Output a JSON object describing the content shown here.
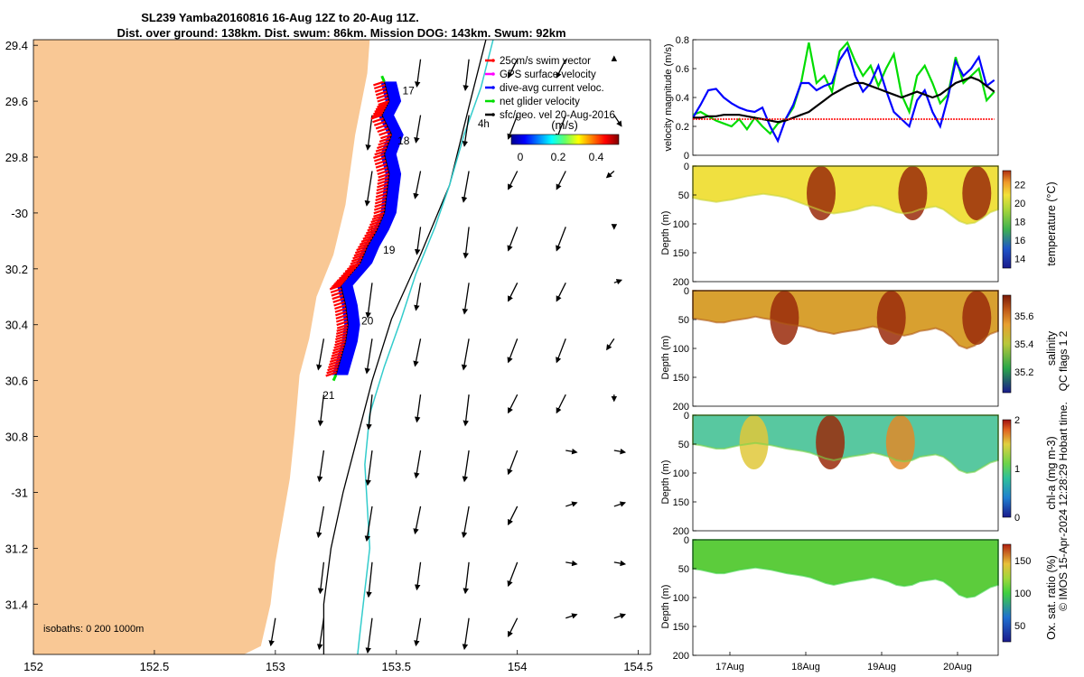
{
  "title": {
    "line1": "SL239 Yamba20160816 16-Aug 12Z to 20-Aug 11Z.",
    "line2": "Dist. over ground: 138km. Dist. swum: 86km. Mission DOG: 143km. Swum: 92km"
  },
  "colors": {
    "land": "#f9c895",
    "swim": "#ff0000",
    "gps": "#ff00ff",
    "dive": "#0000ff",
    "net": "#00dd00",
    "geo": "#000000",
    "iso200": "#000000",
    "iso1000": "#33cccc"
  },
  "chart_data": [
    {
      "type": "map",
      "xlim": [
        152,
        154.55
      ],
      "ylim": [
        -31.58,
        -29.38
      ],
      "x_ticks": [
        152,
        152.5,
        153,
        153.5,
        154,
        154.5
      ],
      "x_tick_labels": [
        "152",
        "152.5",
        "153",
        "153.5",
        "154",
        "154.5"
      ],
      "y_ticks": [
        -29.4,
        -29.6,
        -29.8,
        -30,
        -30.2,
        -30.4,
        -30.6,
        -30.8,
        -31,
        -31.2,
        -31.4
      ],
      "y_tick_labels": [
        "29.4",
        "29.6",
        "29.8",
        "-30",
        "30.2",
        "30.4",
        "30.6",
        "30.8",
        "-31",
        "31.2",
        "31.4"
      ],
      "legend": {
        "items": [
          {
            "label": "25cm/s swim vector",
            "color_key": "swim"
          },
          {
            "label": "GPS surface velocity",
            "color_key": "gps"
          },
          {
            "label": "dive-avg current veloc.",
            "color_key": "dive"
          },
          {
            "label": "net glider velocity",
            "color_key": "net"
          },
          {
            "label": "sfc/geo. vel 20-Aug-2016",
            "color_key": "geo"
          }
        ],
        "placement": "top-right",
        "colorbar_label": "(m/s)",
        "colorbar_ticks": [
          "0",
          "0.2",
          "0.4"
        ],
        "age_label": "4h"
      },
      "day_labels": [
        {
          "label": "17",
          "lon": 153.55,
          "lat": -29.575
        },
        {
          "label": "18",
          "lon": 153.53,
          "lat": -29.755
        },
        {
          "label": "19",
          "lon": 153.47,
          "lat": -30.145
        },
        {
          "label": "20",
          "lon": 153.38,
          "lat": -30.4
        },
        {
          "label": "21",
          "lon": 153.22,
          "lat": -30.665
        }
      ],
      "isobath_label": "isobaths: 0   200  1000m",
      "coast": [
        [
          152.0,
          -29.38
        ],
        [
          153.39,
          -29.38
        ],
        [
          153.38,
          -29.5
        ],
        [
          153.33,
          -29.72
        ],
        [
          153.29,
          -29.97
        ],
        [
          153.24,
          -30.15
        ],
        [
          153.17,
          -30.3
        ],
        [
          153.14,
          -30.45
        ],
        [
          153.1,
          -30.58
        ],
        [
          153.08,
          -30.78
        ],
        [
          153.06,
          -30.95
        ],
        [
          153.03,
          -31.1
        ],
        [
          153.0,
          -31.25
        ],
        [
          152.98,
          -31.4
        ],
        [
          152.94,
          -31.55
        ],
        [
          152.87,
          -31.58
        ],
        [
          152.0,
          -31.58
        ]
      ],
      "iso200": [
        [
          153.87,
          -29.38
        ],
        [
          153.8,
          -29.62
        ],
        [
          153.72,
          -29.9
        ],
        [
          153.6,
          -30.15
        ],
        [
          153.48,
          -30.38
        ],
        [
          153.4,
          -30.6
        ],
        [
          153.34,
          -30.8
        ],
        [
          153.28,
          -31.0
        ],
        [
          153.23,
          -31.2
        ],
        [
          153.2,
          -31.4
        ],
        [
          153.2,
          -31.58
        ]
      ],
      "iso1000": [
        [
          153.9,
          -29.38
        ],
        [
          153.85,
          -29.55
        ],
        [
          153.78,
          -29.72
        ],
        [
          153.72,
          -29.9
        ],
        [
          153.66,
          -30.05
        ],
        [
          153.58,
          -30.22
        ],
        [
          153.52,
          -30.38
        ],
        [
          153.45,
          -30.55
        ],
        [
          153.39,
          -30.72
        ],
        [
          153.37,
          -30.9
        ],
        [
          153.38,
          -31.05
        ],
        [
          153.39,
          -31.2
        ],
        [
          153.37,
          -31.35
        ],
        [
          153.35,
          -31.5
        ],
        [
          153.34,
          -31.58
        ]
      ],
      "glider_track": [
        [
          153.45,
          -29.53
        ],
        [
          153.47,
          -29.6
        ],
        [
          153.44,
          -29.65
        ],
        [
          153.48,
          -29.72
        ],
        [
          153.45,
          -29.79
        ],
        [
          153.47,
          -29.86
        ],
        [
          153.46,
          -29.93
        ],
        [
          153.45,
          -30.0
        ],
        [
          153.42,
          -30.06
        ],
        [
          153.38,
          -30.12
        ],
        [
          153.35,
          -30.18
        ],
        [
          153.3,
          -30.23
        ],
        [
          153.27,
          -30.26
        ],
        [
          153.29,
          -30.33
        ],
        [
          153.3,
          -30.4
        ],
        [
          153.29,
          -30.46
        ],
        [
          153.27,
          -30.52
        ],
        [
          153.25,
          -30.58
        ]
      ],
      "current_vectors": {
        "grid_dx": 0.2,
        "grid_dy": 0.2,
        "lon0": 153.0,
        "lat0": -29.45,
        "description_key": "geo"
      }
    },
    {
      "type": "line",
      "x_ticks": [
        "17Aug",
        "18Aug",
        "19Aug",
        "20Aug"
      ],
      "ylabel": "velocity magnitude (m/s)",
      "ylim": [
        0,
        0.8
      ],
      "y_ticks": [
        "0",
        "0.2",
        "0.4",
        "0.6",
        "0.8"
      ],
      "x": [
        16.5,
        16.6,
        16.7,
        16.8,
        16.9,
        17.0,
        17.1,
        17.2,
        17.3,
        17.4,
        17.5,
        17.6,
        17.7,
        17.8,
        17.9,
        18.0,
        18.1,
        18.2,
        18.3,
        18.4,
        18.5,
        18.6,
        18.7,
        18.8,
        18.9,
        19.0,
        19.1,
        19.2,
        19.3,
        19.4,
        19.5,
        19.6,
        19.7,
        19.8,
        19.9,
        20.0,
        20.1,
        20.2,
        20.3,
        20.4
      ],
      "xlim": [
        16.5,
        20.45
      ],
      "series": [
        {
          "color_key": "net",
          "values": [
            0.28,
            0.3,
            0.27,
            0.24,
            0.22,
            0.2,
            0.25,
            0.18,
            0.26,
            0.2,
            0.15,
            0.22,
            0.25,
            0.33,
            0.5,
            0.78,
            0.5,
            0.55,
            0.44,
            0.72,
            0.78,
            0.65,
            0.55,
            0.62,
            0.48,
            0.6,
            0.7,
            0.42,
            0.3,
            0.55,
            0.62,
            0.5,
            0.36,
            0.42,
            0.68,
            0.5,
            0.55,
            0.6,
            0.38,
            0.44
          ]
        },
        {
          "color_key": "dive",
          "values": [
            0.26,
            0.35,
            0.45,
            0.46,
            0.4,
            0.36,
            0.33,
            0.31,
            0.3,
            0.33,
            0.2,
            0.1,
            0.25,
            0.35,
            0.5,
            0.5,
            0.45,
            0.48,
            0.5,
            0.66,
            0.74,
            0.55,
            0.44,
            0.5,
            0.62,
            0.45,
            0.3,
            0.25,
            0.2,
            0.38,
            0.45,
            0.3,
            0.2,
            0.4,
            0.65,
            0.55,
            0.6,
            0.68,
            0.48,
            0.52
          ]
        },
        {
          "color_key": "geo",
          "values": [
            0.26,
            0.26,
            0.27,
            0.27,
            0.28,
            0.28,
            0.28,
            0.27,
            0.26,
            0.25,
            0.24,
            0.23,
            0.24,
            0.26,
            0.28,
            0.3,
            0.34,
            0.38,
            0.42,
            0.45,
            0.48,
            0.5,
            0.5,
            0.48,
            0.46,
            0.44,
            0.42,
            0.4,
            0.42,
            0.44,
            0.42,
            0.4,
            0.42,
            0.46,
            0.5,
            0.52,
            0.54,
            0.52,
            0.48,
            0.44
          ]
        },
        {
          "color_key": "swim",
          "values": [
            0.25,
            0.25,
            0.25,
            0.25,
            0.25,
            0.25,
            0.25,
            0.25,
            0.25,
            0.25,
            0.25,
            0.25,
            0.25,
            0.25,
            0.25,
            0.25,
            0.25,
            0.25,
            0.25,
            0.25,
            0.25,
            0.25,
            0.25,
            0.25,
            0.25,
            0.25,
            0.25,
            0.25,
            0.25,
            0.25,
            0.25,
            0.25,
            0.25,
            0.25,
            0.25,
            0.25,
            0.25,
            0.25,
            0.25,
            0.25
          ]
        }
      ]
    },
    {
      "type": "heatmap",
      "ylabel": "Depth (m)",
      "ylim": [
        200,
        0
      ],
      "y_ticks": [
        "0",
        "50",
        "100",
        "150",
        "200"
      ],
      "colorbar_label": "temperature (°C)",
      "colorbar_ticks": [
        "14",
        "16",
        "18",
        "20",
        "22"
      ],
      "colorbar_range": [
        13,
        23.5
      ],
      "bottom_depth": [
        55,
        58,
        60,
        62,
        60,
        58,
        55,
        52,
        50,
        48,
        50,
        52,
        55,
        60,
        65,
        70,
        75,
        80,
        82,
        80,
        78,
        75,
        70,
        68,
        70,
        75,
        80,
        82,
        80,
        75,
        72,
        70,
        75,
        85,
        95,
        100,
        98,
        90,
        80,
        75
      ],
      "surface_value": 20.6,
      "hot_spots": [
        [
          0.42,
          22.5
        ],
        [
          0.72,
          22.8
        ],
        [
          0.93,
          23.0
        ]
      ]
    },
    {
      "type": "heatmap",
      "ylabel": "Depth (m)",
      "ylim": [
        200,
        0
      ],
      "y_ticks": [
        "0",
        "50",
        "100",
        "150",
        "200"
      ],
      "colorbar_label": "salinity",
      "colorbar_ticks": [
        "35.2",
        "35.4",
        "35.6"
      ],
      "colorbar_range": [
        35.05,
        35.75
      ],
      "bottom_depth": [
        48,
        50,
        52,
        55,
        55,
        52,
        50,
        48,
        45,
        48,
        50,
        55,
        58,
        60,
        62,
        65,
        70,
        72,
        75,
        72,
        70,
        68,
        65,
        62,
        65,
        70,
        75,
        78,
        75,
        70,
        68,
        65,
        70,
        80,
        95,
        100,
        95,
        85,
        75,
        70
      ],
      "surface_value": 35.5,
      "hot_spots": [
        [
          0.3,
          35.7
        ],
        [
          0.65,
          35.75
        ],
        [
          0.93,
          35.75
        ]
      ]
    },
    {
      "type": "heatmap",
      "ylabel": "Depth (m)",
      "ylim": [
        200,
        0
      ],
      "y_ticks": [
        "0",
        "50",
        "100",
        "150",
        "200"
      ],
      "colorbar_label": "chl-a (mg m-3)",
      "colorbar_ticks": [
        "0",
        "1",
        "2"
      ],
      "colorbar_range": [
        0,
        2
      ],
      "bottom_depth": [
        50,
        52,
        55,
        58,
        58,
        55,
        52,
        50,
        48,
        50,
        52,
        55,
        58,
        60,
        62,
        65,
        70,
        75,
        78,
        75,
        72,
        70,
        68,
        65,
        68,
        72,
        78,
        80,
        78,
        72,
        70,
        68,
        72,
        82,
        95,
        100,
        98,
        90,
        82,
        78
      ],
      "surface_value": 0.9,
      "hot_spots": [
        [
          0.45,
          1.9
        ],
        [
          0.68,
          1.6
        ],
        [
          0.2,
          1.3
        ]
      ]
    },
    {
      "type": "heatmap",
      "ylabel": "Depth (m)",
      "ylim": [
        200,
        0
      ],
      "y_ticks": [
        "0",
        "50",
        "100",
        "150",
        "200"
      ],
      "x_ticks": [
        "17Aug",
        "18Aug",
        "19Aug",
        "20Aug"
      ],
      "colorbar_label": "Ox. sat. ratio (%)",
      "colorbar_ticks": [
        "50",
        "100",
        "150"
      ],
      "colorbar_range": [
        25,
        175
      ],
      "bottom_depth": [
        50,
        52,
        55,
        58,
        58,
        55,
        52,
        50,
        48,
        50,
        52,
        55,
        58,
        60,
        62,
        65,
        70,
        75,
        78,
        75,
        72,
        70,
        68,
        65,
        68,
        72,
        78,
        80,
        78,
        72,
        70,
        68,
        72,
        82,
        95,
        100,
        98,
        90,
        82,
        78
      ],
      "surface_value": 100,
      "hot_spots": []
    }
  ],
  "side_text": {
    "qc": "QC flags 1  2",
    "credit": "© IMOS 15-Apr-2024 12:28:29 Hobart time."
  }
}
